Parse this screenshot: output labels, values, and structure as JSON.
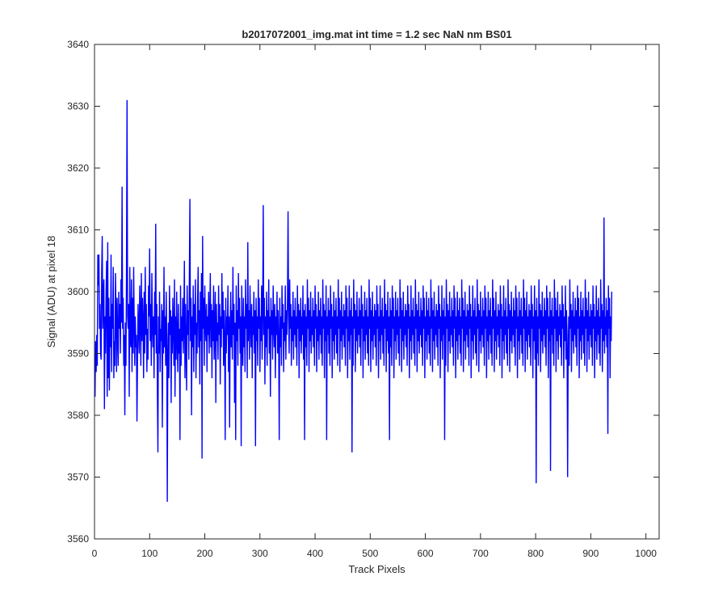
{
  "chart_data": {
    "type": "line",
    "title": "b2017072001_img.mat int time = 1.2 sec  NaN nm BS01",
    "xlabel": "Track Pixels",
    "ylabel": "Signal (ADU) at pixel 18",
    "xlim": [
      0,
      1024
    ],
    "ylim": [
      3560,
      3640
    ],
    "x_ticks": [
      0,
      100,
      200,
      300,
      400,
      500,
      600,
      700,
      800,
      900,
      1000
    ],
    "y_ticks": [
      3560,
      3570,
      3580,
      3590,
      3600,
      3610,
      3620,
      3630,
      3640
    ],
    "grid": false,
    "line_color": "#0000ff",
    "series": [
      {
        "x_start": 1,
        "x_step": 1,
        "noise_model": "approximately uniform noise about 3592 ADU, range mostly 3576-3608",
        "values": [
          3583,
          3592,
          3587,
          3593,
          3588,
          3606,
          3601,
          3606,
          3594,
          3598,
          3590,
          3589,
          3603,
          3609,
          3594,
          3599,
          3602,
          3581,
          3596,
          3590,
          3600,
          3605,
          3583,
          3608,
          3586,
          3599,
          3584,
          3596,
          3591,
          3606,
          3587,
          3598,
          3594,
          3604,
          3586,
          3592,
          3588,
          3603,
          3597,
          3587,
          3599,
          3593,
          3588,
          3600,
          3594,
          3598,
          3590,
          3602,
          3595,
          3617,
          3594,
          3599,
          3588,
          3593,
          3580,
          3595,
          3588,
          3603,
          3631,
          3596,
          3594,
          3598,
          3583,
          3604,
          3592,
          3591,
          3602,
          3587,
          3599,
          3590,
          3604,
          3595,
          3588,
          3596,
          3591,
          3593,
          3579,
          3589,
          3598,
          3594,
          3590,
          3601,
          3596,
          3588,
          3603,
          3592,
          3599,
          3595,
          3586,
          3600,
          3590,
          3604,
          3593,
          3598,
          3587,
          3594,
          3589,
          3601,
          3596,
          3607,
          3592,
          3598,
          3588,
          3603,
          3595,
          3591,
          3596,
          3586,
          3600,
          3593,
          3611,
          3590,
          3598,
          3584,
          3574,
          3596,
          3590,
          3600,
          3587,
          3594,
          3592,
          3598,
          3578,
          3597,
          3590,
          3604,
          3591,
          3596,
          3588,
          3600,
          3593,
          3566,
          3590,
          3595,
          3586,
          3601,
          3593,
          3597,
          3582,
          3596,
          3590,
          3599,
          3594,
          3588,
          3602,
          3583,
          3596,
          3589,
          3600,
          3592,
          3587,
          3598,
          3590,
          3594,
          3576,
          3601,
          3588,
          3596,
          3592,
          3599,
          3590,
          3595,
          3605,
          3586,
          3598,
          3591,
          3584,
          3601,
          3593,
          3597,
          3589,
          3602,
          3615,
          3592,
          3599,
          3580,
          3596,
          3591,
          3601,
          3587,
          3598,
          3593,
          3602,
          3586,
          3595,
          3590,
          3599,
          3604,
          3591,
          3597,
          3585,
          3600,
          3592,
          3603,
          3573,
          3609,
          3594,
          3599,
          3588,
          3601,
          3595,
          3592,
          3598,
          3587,
          3596,
          3593,
          3600,
          3590,
          3596,
          3603,
          3591,
          3598,
          3586,
          3597,
          3592,
          3601,
          3589,
          3594,
          3600,
          3582,
          3598,
          3592,
          3595,
          3589,
          3601,
          3593,
          3598,
          3585,
          3596,
          3591,
          3603,
          3594,
          3600,
          3588,
          3597,
          3592,
          3576,
          3599,
          3590,
          3596,
          3593,
          3601,
          3587,
          3596,
          3578,
          3594,
          3600,
          3591,
          3597,
          3589,
          3604,
          3593,
          3598,
          3582,
          3595,
          3576,
          3601,
          3592,
          3597,
          3588,
          3603,
          3594,
          3599,
          3590,
          3596,
          3575,
          3601,
          3593,
          3588,
          3599,
          3591,
          3596,
          3587,
          3602,
          3594,
          3598,
          3586,
          3608,
          3592,
          3597,
          3589,
          3601,
          3595,
          3591,
          3598,
          3586,
          3596,
          3593,
          3600,
          3590,
          3597,
          3575,
          3599,
          3592,
          3596,
          3588,
          3602,
          3594,
          3599,
          3587,
          3596,
          3592,
          3601,
          3589,
          3597,
          3614,
          3593,
          3599,
          3585,
          3596,
          3591,
          3600,
          3588,
          3597,
          3594,
          3602,
          3590,
          3596,
          3583,
          3599,
          3593,
          3597,
          3589,
          3601,
          3595,
          3591,
          3598,
          3586,
          3596,
          3593,
          3600,
          3590,
          3597,
          3592,
          3576,
          3599,
          3591,
          3596,
          3588,
          3601,
          3594,
          3598,
          3587,
          3595,
          3592,
          3601,
          3589,
          3597,
          3593,
          3599,
          3613,
          3596,
          3590,
          3602,
          3594,
          3598,
          3588,
          3596,
          3592,
          3600,
          3589,
          3597,
          3593,
          3599,
          3591,
          3596,
          3588,
          3601,
          3594,
          3598,
          3586,
          3597,
          3592,
          3599,
          3590,
          3596,
          3593,
          3601,
          3589,
          3597,
          3576,
          3598,
          3591,
          3596,
          3588,
          3602,
          3594,
          3599,
          3587,
          3597,
          3592,
          3600,
          3590,
          3596,
          3593,
          3599,
          3591,
          3597,
          3588,
          3601,
          3594,
          3598,
          3587,
          3596,
          3592,
          3600,
          3589,
          3597,
          3593,
          3599,
          3590,
          3596,
          3588,
          3602,
          3594,
          3598,
          3586,
          3597,
          3592,
          3601,
          3576,
          3596,
          3593,
          3599,
          3590,
          3597,
          3588,
          3601,
          3594,
          3598,
          3586,
          3596,
          3592,
          3600,
          3589,
          3597,
          3593,
          3599,
          3590,
          3596,
          3588,
          3602,
          3594,
          3599,
          3587,
          3597,
          3592,
          3600,
          3589,
          3596,
          3593,
          3598,
          3591,
          3597,
          3588,
          3601,
          3594,
          3599,
          3586,
          3596,
          3592,
          3601,
          3589,
          3597,
          3593,
          3599,
          3574,
          3596,
          3588,
          3602,
          3594,
          3598,
          3587,
          3597,
          3592,
          3600,
          3590,
          3596,
          3593,
          3599,
          3591,
          3597,
          3588,
          3601,
          3594,
          3598,
          3586,
          3596,
          3592,
          3600,
          3589,
          3597,
          3593,
          3599,
          3590,
          3596,
          3588,
          3602,
          3594,
          3599,
          3587,
          3597,
          3592,
          3600,
          3589,
          3596,
          3593,
          3598,
          3591,
          3597,
          3588,
          3601,
          3594,
          3598,
          3586,
          3596,
          3592,
          3601,
          3589,
          3597,
          3593,
          3599,
          3590,
          3596,
          3588,
          3602,
          3594,
          3598,
          3587,
          3597,
          3592,
          3600,
          3590,
          3596,
          3576,
          3599,
          3591,
          3597,
          3588,
          3601,
          3594,
          3599,
          3586,
          3596,
          3592,
          3600,
          3589,
          3597,
          3593,
          3599,
          3590,
          3596,
          3588,
          3602,
          3594,
          3599,
          3587,
          3597,
          3592,
          3600,
          3589,
          3596,
          3593,
          3598,
          3591,
          3597,
          3588,
          3601,
          3594,
          3598,
          3586,
          3596,
          3592,
          3601,
          3589,
          3597,
          3593,
          3599,
          3590,
          3596,
          3588,
          3602,
          3594,
          3598,
          3587,
          3597,
          3592,
          3600,
          3590,
          3596,
          3593,
          3599,
          3591,
          3597,
          3588,
          3601,
          3594,
          3599,
          3586,
          3596,
          3592,
          3600,
          3589,
          3597,
          3593,
          3599,
          3590,
          3596,
          3588,
          3602,
          3594,
          3599,
          3587,
          3597,
          3592,
          3600,
          3589,
          3596,
          3593,
          3598,
          3591,
          3597,
          3588,
          3601,
          3594,
          3598,
          3586,
          3596,
          3592,
          3601,
          3589,
          3597,
          3593,
          3599,
          3576,
          3596,
          3588,
          3602,
          3594,
          3598,
          3587,
          3597,
          3592,
          3600,
          3590,
          3596,
          3593,
          3599,
          3591,
          3597,
          3588,
          3601,
          3594,
          3599,
          3586,
          3596,
          3592,
          3600,
          3589,
          3597,
          3593,
          3599,
          3590,
          3596,
          3588,
          3602,
          3594,
          3599,
          3587,
          3597,
          3592,
          3600,
          3589,
          3596,
          3593,
          3598,
          3591,
          3597,
          3588,
          3601,
          3594,
          3598,
          3586,
          3596,
          3592,
          3601,
          3589,
          3597,
          3593,
          3599,
          3590,
          3596,
          3588,
          3602,
          3594,
          3598,
          3587,
          3597,
          3592,
          3600,
          3590,
          3596,
          3593,
          3599,
          3591,
          3597,
          3588,
          3601,
          3594,
          3599,
          3586,
          3596,
          3592,
          3600,
          3589,
          3597,
          3593,
          3599,
          3590,
          3596,
          3588,
          3602,
          3594,
          3599,
          3587,
          3597,
          3592,
          3600,
          3589,
          3596,
          3593,
          3598,
          3591,
          3597,
          3588,
          3601,
          3594,
          3598,
          3586,
          3596,
          3592,
          3601,
          3589,
          3597,
          3593,
          3599,
          3590,
          3596,
          3588,
          3602,
          3594,
          3598,
          3587,
          3597,
          3592,
          3600,
          3590,
          3596,
          3593,
          3599,
          3591,
          3597,
          3588,
          3601,
          3594,
          3599,
          3586,
          3596,
          3592,
          3600,
          3589,
          3597,
          3593,
          3599,
          3590,
          3596,
          3588,
          3602,
          3594,
          3599,
          3587,
          3597,
          3592,
          3600,
          3589,
          3596,
          3593,
          3598,
          3591,
          3597,
          3588,
          3601,
          3594,
          3598,
          3586,
          3596,
          3592,
          3601,
          3589,
          3597,
          3569,
          3599,
          3590,
          3596,
          3588,
          3602,
          3594,
          3598,
          3587,
          3597,
          3592,
          3600,
          3590,
          3596,
          3593,
          3599,
          3591,
          3597,
          3588,
          3601,
          3594,
          3599,
          3586,
          3596,
          3592,
          3600,
          3571,
          3597,
          3593,
          3599,
          3590,
          3596,
          3588,
          3602,
          3594,
          3599,
          3587,
          3597,
          3592,
          3600,
          3589,
          3596,
          3593,
          3598,
          3591,
          3597,
          3588,
          3601,
          3594,
          3598,
          3586,
          3596,
          3592,
          3601,
          3589,
          3597,
          3593,
          3570,
          3590,
          3596,
          3588,
          3602,
          3594,
          3598,
          3587,
          3597,
          3592,
          3600,
          3590,
          3596,
          3593,
          3599,
          3591,
          3597,
          3588,
          3601,
          3594,
          3599,
          3586,
          3596,
          3592,
          3600,
          3589,
          3597,
          3593,
          3599,
          3590,
          3596,
          3588,
          3602,
          3594,
          3599,
          3587,
          3597,
          3592,
          3600,
          3589,
          3596,
          3593,
          3598,
          3591,
          3597,
          3588,
          3601,
          3594,
          3598,
          3586,
          3596,
          3592,
          3601,
          3589,
          3597,
          3593,
          3599,
          3590,
          3596,
          3588,
          3602,
          3594,
          3598,
          3587,
          3597,
          3592,
          3612,
          3590,
          3596,
          3593,
          3599,
          3591,
          3597,
          3577,
          3601,
          3594,
          3599,
          3586,
          3596,
          3592,
          3600
        ]
      }
    ]
  }
}
